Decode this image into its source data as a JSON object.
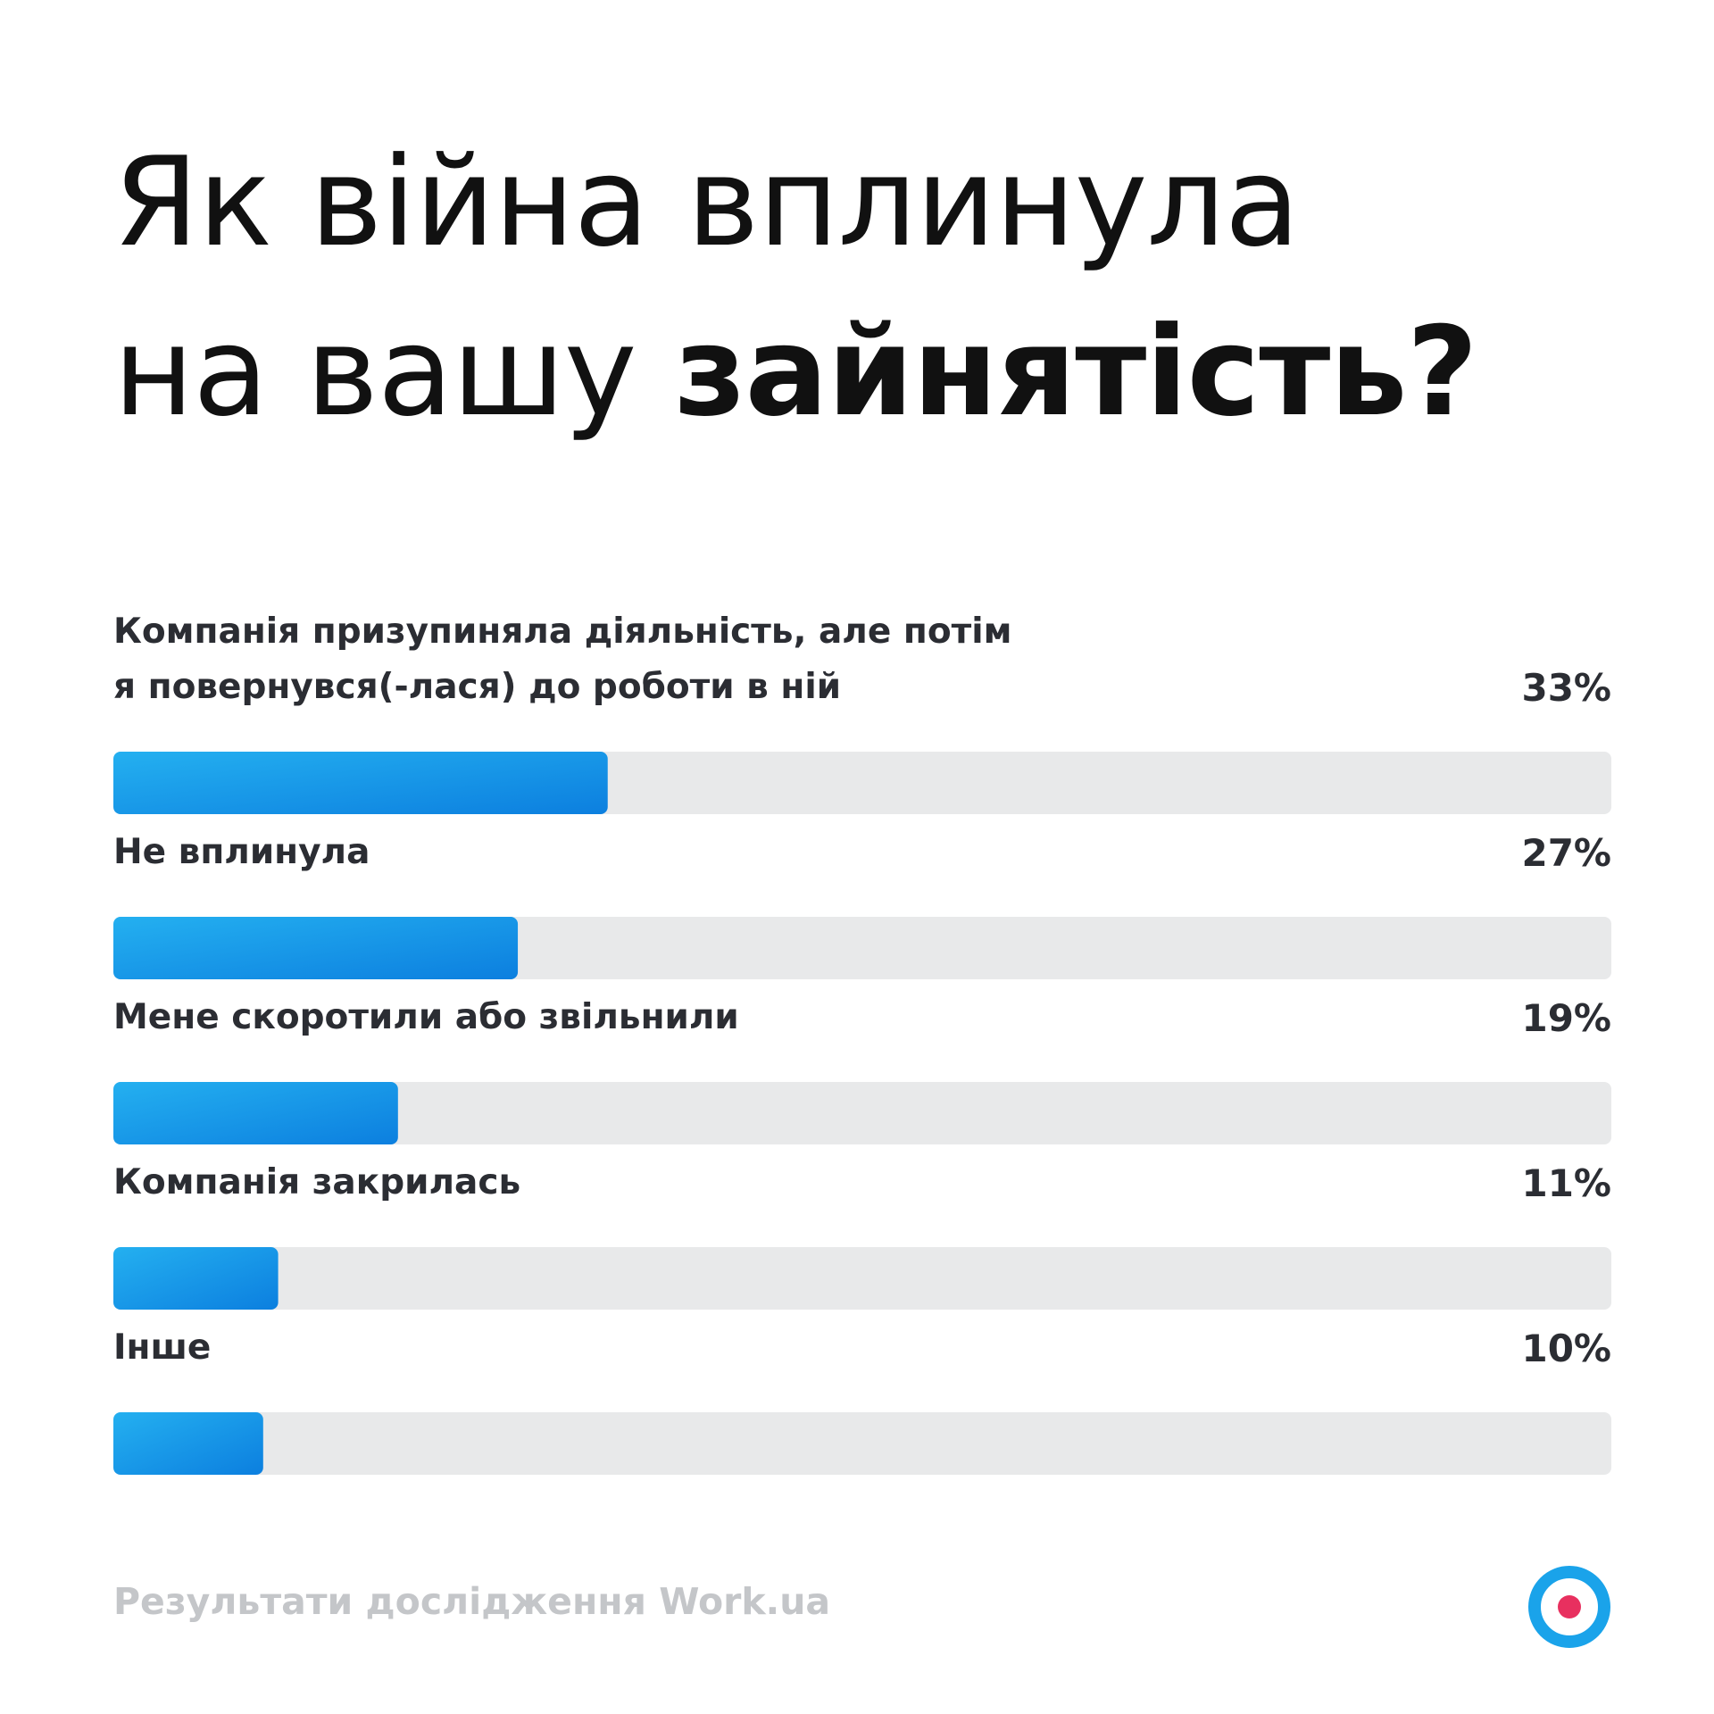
{
  "title": {
    "line1": "Як війна вплинула",
    "line2_regular": "на вашу ",
    "line2_bold": "зайнятість?"
  },
  "chart_data": {
    "type": "bar",
    "orientation": "horizontal",
    "title": "Як війна вплинула на вашу зайнятість?",
    "value_suffix": "%",
    "xlim": [
      0,
      100
    ],
    "categories": [
      [
        "Компанія призупиняла діяльність, але потім",
        "я повернувся(-лася) до роботи в ній"
      ],
      [
        "Не вплинула"
      ],
      [
        "Мене скоротили або звільнили"
      ],
      [
        "Компанія закрилась"
      ],
      [
        "Інше"
      ]
    ],
    "values": [
      33,
      27,
      19,
      11,
      10
    ],
    "labels": [
      "33%",
      "27%",
      "19%",
      "11%",
      "10%"
    ],
    "grid": false,
    "legend": "none"
  },
  "colors": {
    "bar_start": "#24b0f0",
    "bar_end": "#0c7fdf",
    "track": "#e8e9ea",
    "logo_ring": "#1aa3ea",
    "logo_dot": "#e8305f"
  },
  "footer": {
    "source": "Результати дослідження Work.ua",
    "logo_icon": "work-ua-logo-icon"
  }
}
